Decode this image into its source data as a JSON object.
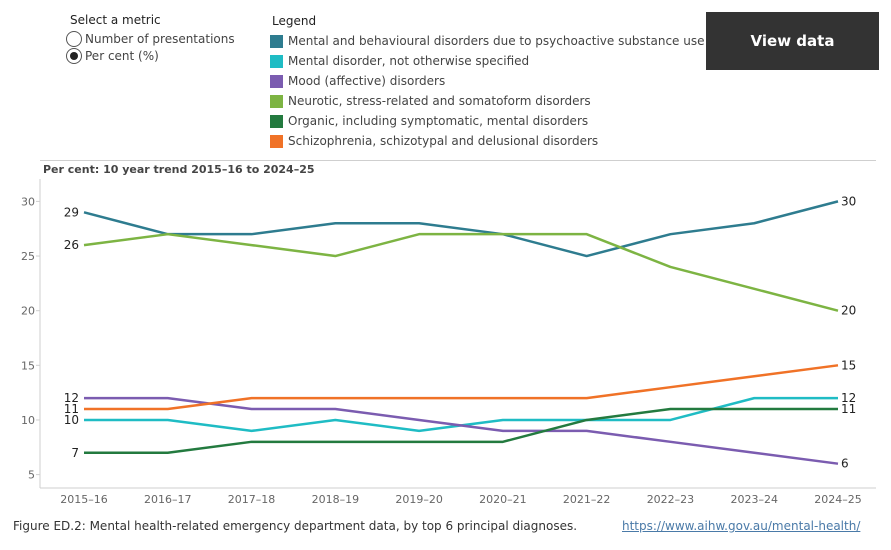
{
  "metric_selector": {
    "title": "Select a metric",
    "options": [
      {
        "label": "Number of presentations",
        "checked": false
      },
      {
        "label": "Per cent (%)",
        "checked": true
      }
    ]
  },
  "legend": {
    "title": "Legend",
    "items": [
      {
        "label": "Mental and behavioural disorders due to psychoactive substance use",
        "color": "#2e7c8f"
      },
      {
        "label": "Mental disorder, not otherwise specified",
        "color": "#1fbcc4"
      },
      {
        "label": "Mood (affective) disorders",
        "color": "#7b5cb0"
      },
      {
        "label": "Neurotic, stress-related and somatoform disorders",
        "color": "#7db443"
      },
      {
        "label": "Organic, including symptomatic, mental disorders",
        "color": "#237a3f"
      },
      {
        "label": "Schizophrenia, schizotypal and delusional disorders",
        "color": "#f07227"
      }
    ]
  },
  "view_data_button": "View data",
  "chart_data": {
    "type": "line",
    "title": "Per cent: 10 year trend 2015–16 to 2024–25",
    "categories": [
      "2015–16",
      "2016–17",
      "2017–18",
      "2018–19",
      "2019–20",
      "2020–21",
      "2021–22",
      "2022–23",
      "2023–24",
      "2024–25"
    ],
    "yticks": [
      5,
      10,
      15,
      20,
      25,
      30
    ],
    "ylim": [
      3.5,
      31.5
    ],
    "grid": false,
    "series": [
      {
        "name": "Mental and behavioural disorders due to psychoactive substance use",
        "color": "#2e7c8f",
        "values": [
          29,
          27,
          27,
          28,
          28,
          27,
          25,
          27,
          28,
          30
        ],
        "start_label": "29",
        "end_label": "30"
      },
      {
        "name": "Mental disorder, not otherwise specified",
        "color": "#1fbcc4",
        "values": [
          10,
          10,
          9,
          10,
          9,
          10,
          10,
          10,
          12,
          12
        ],
        "start_label": "10",
        "end_label": "12"
      },
      {
        "name": "Mood (affective) disorders",
        "color": "#7b5cb0",
        "values": [
          12,
          12,
          11,
          11,
          10,
          9,
          9,
          8,
          7,
          6
        ],
        "start_label": "12",
        "end_label": "6"
      },
      {
        "name": "Neurotic, stress-related and somatoform disorders",
        "color": "#7db443",
        "values": [
          26,
          27,
          26,
          25,
          27,
          27,
          27,
          24,
          22,
          20
        ],
        "start_label": "26",
        "end_label": "20"
      },
      {
        "name": "Organic, including symptomatic, mental disorders",
        "color": "#237a3f",
        "values": [
          7,
          7,
          8,
          8,
          8,
          8,
          10,
          11,
          11,
          11
        ],
        "start_label": "7",
        "end_label": "11"
      },
      {
        "name": "Schizophrenia, schizotypal and delusional disorders",
        "color": "#f07227",
        "values": [
          11,
          11,
          12,
          12,
          12,
          12,
          12,
          13,
          14,
          15
        ],
        "start_label": "11",
        "end_label": "15"
      }
    ]
  },
  "caption": "Figure ED.2: Mental health-related emergency department data, by top 6 principal diagnoses.",
  "source_link": "https://www.aihw.gov.au/mental-health/"
}
